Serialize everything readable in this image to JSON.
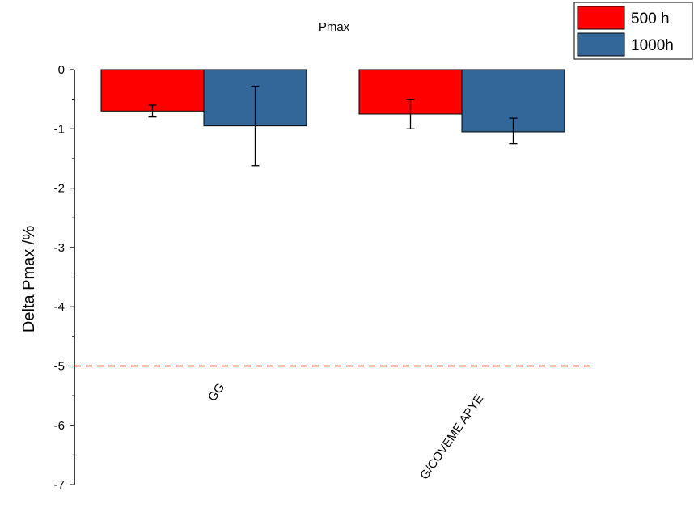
{
  "chart_data": {
    "type": "bar",
    "title": "Pmax",
    "xlabel": "",
    "ylabel": "Delta Pmax /%",
    "ylim": [
      -7,
      0
    ],
    "yticks": [
      0,
      -1,
      -2,
      -3,
      -4,
      -5,
      -6,
      -7
    ],
    "categories": [
      "GG",
      "G/COVEME APYE"
    ],
    "series": [
      {
        "name": "500 h",
        "color": "#ff0000",
        "values": [
          -0.7,
          -0.75
        ],
        "err_low": [
          -0.8,
          -1.0
        ],
        "err_high": [
          -0.6,
          -0.5
        ]
      },
      {
        "name": "1000h",
        "color": "#336699",
        "values": [
          -0.95,
          -1.05
        ],
        "err_low": [
          -1.62,
          -1.25
        ],
        "err_high": [
          -0.28,
          -0.82
        ]
      }
    ],
    "reference_line": {
      "y": -5,
      "color": "#ff0000",
      "style": "dashed"
    },
    "grid": false,
    "legend_position": "top-right"
  }
}
